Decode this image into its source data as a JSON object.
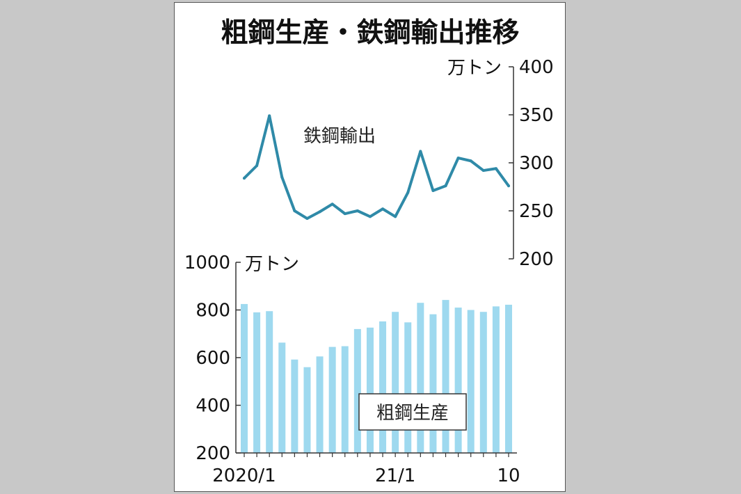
{
  "chart_data": {
    "type": "line+bar",
    "title": "粗鋼生産・鉄鋼輸出推移",
    "x": [
      "2020/1",
      "2020/2",
      "2020/3",
      "2020/4",
      "2020/5",
      "2020/6",
      "2020/7",
      "2020/8",
      "2020/9",
      "2020/10",
      "2020/11",
      "2020/12",
      "2021/1",
      "2021/2",
      "2021/3",
      "2021/4",
      "2021/5",
      "2021/6",
      "2021/7",
      "2021/8",
      "2021/9",
      "2021/10"
    ],
    "x_tick_labels": [
      {
        "index": 0,
        "label": "2020/1"
      },
      {
        "index": 12,
        "label": "21/1"
      },
      {
        "index": 21,
        "label": "10"
      }
    ],
    "line": {
      "name": "鉄鋼輸出",
      "unit": "万トン",
      "ylim": [
        200,
        400
      ],
      "yticks": [
        200,
        250,
        300,
        350,
        400
      ],
      "axis_side": "right",
      "color": "#2f8aa8",
      "values": [
        284,
        297,
        349,
        285,
        250,
        242,
        249,
        257,
        247,
        250,
        244,
        252,
        244,
        269,
        312,
        271,
        276,
        305,
        302,
        292,
        294,
        276
      ]
    },
    "bar": {
      "name": "粗鋼生産",
      "unit": "万トン",
      "ylim": [
        200,
        1000
      ],
      "yticks": [
        200,
        400,
        600,
        800,
        1000
      ],
      "axis_side": "left",
      "color": "#9ed9ef",
      "values": [
        825,
        790,
        795,
        663,
        592,
        560,
        605,
        645,
        648,
        720,
        726,
        752,
        792,
        748,
        830,
        782,
        842,
        810,
        800,
        792,
        815,
        822
      ]
    }
  }
}
